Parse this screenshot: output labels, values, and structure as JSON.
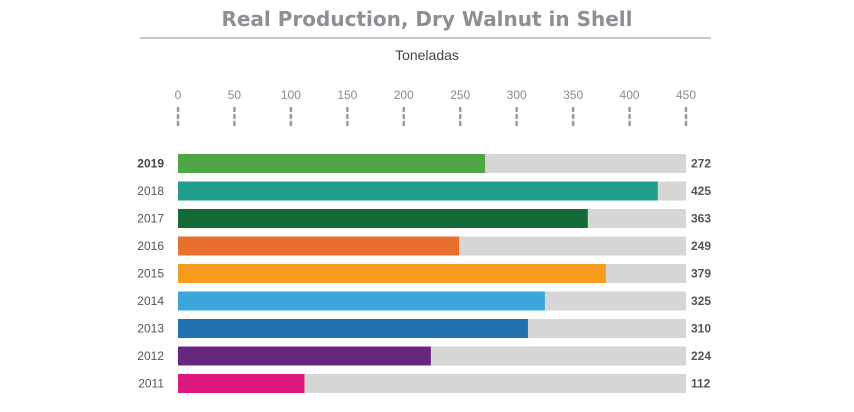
{
  "chart_data": {
    "type": "bar",
    "orientation": "horizontal",
    "title": "Real Production, Dry Walnut in Shell",
    "unit_label": "Toneladas",
    "categories": [
      "2019",
      "2018",
      "2017",
      "2016",
      "2015",
      "2014",
      "2013",
      "2012",
      "2011"
    ],
    "values": [
      272,
      425,
      363,
      249,
      379,
      325,
      310,
      224,
      112
    ],
    "value_labels": [
      "272",
      "425",
      "363",
      "249",
      "379",
      "325",
      "310",
      "224",
      "112"
    ],
    "colors": [
      "#4ea646",
      "#1f9e8e",
      "#146b38",
      "#e96f2e",
      "#f79b1f",
      "#3ba6dc",
      "#2272b2",
      "#66287e",
      "#e0177e"
    ],
    "track_color": "#d6d6d6",
    "xlim": [
      0,
      450
    ],
    "ticks": [
      0,
      50,
      100,
      150,
      200,
      250,
      300,
      350,
      400,
      450
    ],
    "tick_labels": [
      "0",
      "50",
      "100",
      "150",
      "200",
      "250",
      "300",
      "350",
      "400",
      "450"
    ],
    "highlighted_category": "2019",
    "grid": false,
    "legend": "none"
  }
}
